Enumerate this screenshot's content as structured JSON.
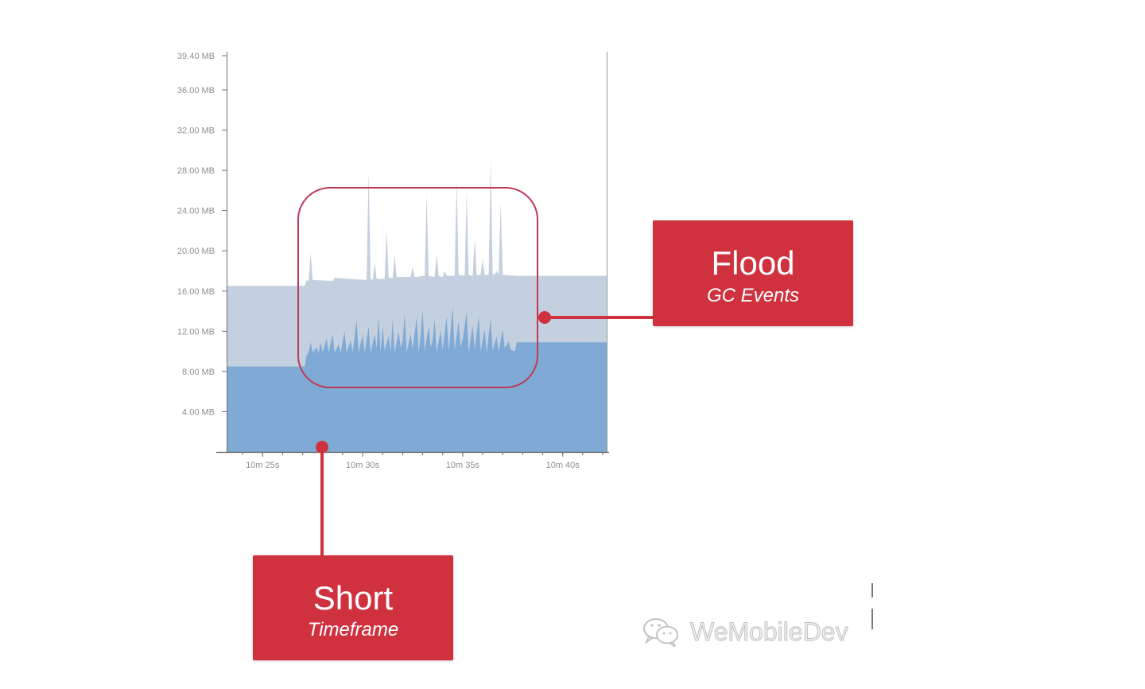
{
  "chart_data": {
    "type": "area",
    "xlim": [
      623.2,
      642.2
    ],
    "ylim": [
      0,
      39.4
    ],
    "grid": false,
    "x_tick_labels": [
      "10m 25s",
      "10m 30s",
      "10m 35s",
      "10m 40s"
    ],
    "y_tick_labels": [
      "39.40 MB",
      "36.00 MB",
      "32.00 MB",
      "28.00 MB",
      "24.00 MB",
      "20.00 MB",
      "16.00 MB",
      "12.00 MB",
      "8.00 MB",
      "4.00 MB"
    ],
    "series": [
      {
        "color": "#c4d0df",
        "x": [
          623.2,
          627.1,
          627.2,
          627.3,
          627.4,
          627.5,
          628.5,
          628.6,
          630.2,
          630.3,
          630.4,
          630.5,
          630.6,
          630.7,
          631.1,
          631.2,
          631.3,
          631.5,
          631.6,
          631.7,
          632.4,
          632.5,
          632.6,
          633.1,
          633.2,
          633.3,
          633.6,
          633.7,
          633.8,
          634.0,
          634.1,
          634.2,
          634.6,
          634.7,
          634.8,
          635.1,
          635.2,
          635.3,
          635.5,
          635.6,
          635.7,
          635.9,
          636.0,
          636.1,
          636.3,
          636.4,
          636.5,
          636.6,
          636.7,
          636.8,
          636.9,
          637.0,
          637.7,
          642.2
        ],
        "values": [
          16.5,
          16.5,
          17.1,
          17.0,
          19.8,
          17.1,
          17.0,
          17.3,
          17.1,
          27.9,
          17.2,
          17.1,
          18.8,
          17.2,
          17.2,
          22.0,
          17.3,
          17.3,
          19.6,
          17.4,
          17.4,
          18.4,
          17.4,
          17.5,
          25.6,
          17.5,
          17.4,
          19.6,
          17.5,
          17.4,
          18.0,
          17.5,
          17.5,
          27.1,
          17.6,
          17.5,
          25.9,
          17.6,
          17.5,
          21.2,
          17.6,
          17.6,
          19.2,
          17.6,
          17.6,
          29.1,
          17.7,
          17.6,
          18.0,
          17.6,
          24.8,
          17.6,
          17.5,
          17.5
        ]
      },
      {
        "color": "#7faad5",
        "x": [
          623.2,
          627.1,
          627.2,
          627.3,
          627.4,
          627.5,
          627.7,
          627.8,
          627.9,
          628.0,
          628.2,
          628.3,
          628.5,
          628.6,
          628.8,
          628.9,
          629.1,
          629.2,
          629.4,
          629.5,
          629.7,
          629.8,
          630.0,
          630.1,
          630.3,
          630.4,
          630.6,
          630.7,
          630.8,
          630.9,
          631.0,
          631.1,
          631.3,
          631.4,
          631.5,
          631.6,
          631.8,
          631.9,
          632.0,
          632.1,
          632.2,
          632.4,
          632.5,
          632.7,
          632.8,
          632.9,
          633.0,
          633.1,
          633.3,
          633.4,
          633.5,
          633.6,
          633.7,
          633.9,
          634.0,
          634.2,
          634.3,
          634.5,
          634.6,
          634.8,
          634.9,
          635.0,
          635.2,
          635.3,
          635.5,
          635.6,
          635.8,
          635.9,
          636.1,
          636.2,
          636.4,
          636.5,
          636.7,
          636.8,
          637.0,
          637.1,
          637.3,
          637.4,
          637.6,
          637.7,
          642.2
        ],
        "values": [
          8.5,
          8.5,
          9.6,
          9.9,
          10.9,
          9.9,
          10.4,
          9.8,
          10.9,
          9.9,
          11.3,
          9.9,
          11.7,
          9.9,
          10.7,
          9.9,
          12.0,
          9.9,
          11.1,
          9.9,
          13.1,
          9.9,
          11.7,
          9.9,
          12.5,
          9.9,
          11.7,
          10.3,
          13.4,
          9.9,
          12.5,
          10.1,
          11.5,
          9.9,
          13.2,
          9.9,
          12.0,
          10.4,
          11.0,
          13.8,
          9.9,
          11.7,
          10.2,
          13.4,
          9.9,
          11.5,
          14.2,
          10.0,
          12.5,
          10.4,
          11.1,
          13.2,
          9.9,
          12.1,
          10.2,
          13.5,
          10.0,
          14.4,
          10.1,
          13.0,
          10.4,
          11.2,
          13.9,
          9.9,
          12.6,
          10.1,
          13.5,
          10.0,
          12.2,
          9.9,
          13.3,
          10.1,
          11.5,
          10.0,
          12.2,
          10.3,
          11.0,
          10.2,
          10.0,
          10.9,
          10.9
        ]
      }
    ]
  },
  "annotations": {
    "flood": {
      "title": "Flood",
      "subtitle": "GC Events"
    },
    "short": {
      "title": "Short",
      "subtitle": "Timeframe"
    }
  },
  "watermark": {
    "text": "WeMobileDev",
    "icon": "wechat-icon"
  },
  "colors": {
    "callout": "#d0313f",
    "highlight_frame": "#bd3a57",
    "axis": "#6e6e6e",
    "plot_border": "#9a9a9a",
    "tick_text": "#8f8f8f",
    "watermark_icon": "#c4c4c4"
  }
}
